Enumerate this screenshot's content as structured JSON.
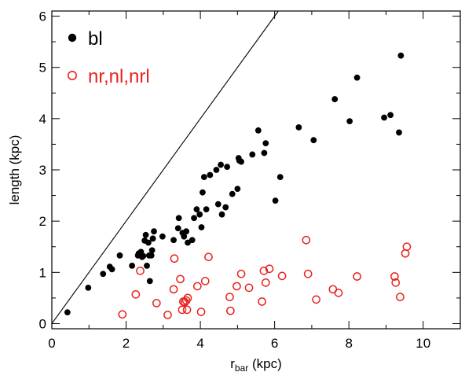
{
  "chart_data": {
    "type": "scatter",
    "xlabel_main": "r",
    "xlabel_sub": "bar",
    "xlabel_unit": " (kpc)",
    "ylabel": "length (kpc)",
    "xlim": [
      0,
      11
    ],
    "ylim": [
      -0.1,
      6.1
    ],
    "xticks": [
      "0",
      "2",
      "4",
      "6",
      "8",
      "10"
    ],
    "yticks": [
      "0",
      "1",
      "2",
      "3",
      "4",
      "5",
      "6"
    ],
    "reference_line": "y = x",
    "legend_position": "top-left",
    "series": [
      {
        "name": "bl",
        "marker": "filled-circle",
        "color": "#000000",
        "points": [
          [
            0.42,
            0.22
          ],
          [
            0.98,
            0.7
          ],
          [
            1.38,
            0.97
          ],
          [
            1.56,
            1.11
          ],
          [
            1.62,
            1.06
          ],
          [
            1.83,
            1.33
          ],
          [
            2.16,
            1.13
          ],
          [
            2.32,
            1.33
          ],
          [
            2.34,
            1.37
          ],
          [
            2.4,
            1.4
          ],
          [
            2.43,
            1.3
          ],
          [
            2.46,
            1.32
          ],
          [
            2.5,
            1.62
          ],
          [
            2.53,
            1.73
          ],
          [
            2.56,
            1.13
          ],
          [
            2.6,
            1.58
          ],
          [
            2.62,
            1.33
          ],
          [
            2.64,
            0.83
          ],
          [
            2.68,
            1.33
          ],
          [
            2.7,
            1.43
          ],
          [
            2.72,
            1.66
          ],
          [
            2.75,
            1.8
          ],
          [
            2.98,
            1.7
          ],
          [
            3.28,
            1.63
          ],
          [
            3.4,
            1.86
          ],
          [
            3.42,
            2.06
          ],
          [
            3.52,
            1.77
          ],
          [
            3.56,
            1.7
          ],
          [
            3.62,
            1.8
          ],
          [
            3.66,
            1.58
          ],
          [
            3.78,
            1.63
          ],
          [
            3.83,
            2.06
          ],
          [
            3.9,
            2.23
          ],
          [
            3.98,
            2.13
          ],
          [
            4.03,
            1.88
          ],
          [
            4.06,
            2.56
          ],
          [
            4.1,
            2.86
          ],
          [
            4.16,
            2.23
          ],
          [
            4.26,
            2.9
          ],
          [
            4.43,
            3.0
          ],
          [
            4.48,
            2.33
          ],
          [
            4.55,
            3.1
          ],
          [
            4.58,
            2.13
          ],
          [
            4.68,
            2.27
          ],
          [
            4.72,
            3.06
          ],
          [
            4.86,
            2.53
          ],
          [
            5.0,
            2.63
          ],
          [
            5.03,
            3.23
          ],
          [
            5.05,
            3.18
          ],
          [
            5.1,
            3.16
          ],
          [
            5.4,
            3.3
          ],
          [
            5.56,
            3.77
          ],
          [
            5.72,
            3.33
          ],
          [
            5.76,
            3.52
          ],
          [
            6.02,
            2.4
          ],
          [
            6.15,
            2.86
          ],
          [
            6.65,
            3.83
          ],
          [
            7.05,
            3.58
          ],
          [
            7.62,
            4.38
          ],
          [
            8.02,
            3.95
          ],
          [
            8.22,
            4.8
          ],
          [
            8.95,
            4.02
          ],
          [
            9.12,
            4.07
          ],
          [
            9.35,
            3.73
          ],
          [
            9.4,
            5.23
          ]
        ]
      },
      {
        "name": "nr,nl,nrl",
        "marker": "open-circle",
        "color": "#e8231f",
        "points": [
          [
            1.9,
            0.18
          ],
          [
            2.26,
            0.57
          ],
          [
            2.38,
            1.03
          ],
          [
            2.82,
            0.4
          ],
          [
            3.12,
            0.17
          ],
          [
            3.28,
            0.67
          ],
          [
            3.3,
            1.27
          ],
          [
            3.46,
            0.87
          ],
          [
            3.51,
            0.27
          ],
          [
            3.54,
            0.43
          ],
          [
            3.58,
            0.42
          ],
          [
            3.62,
            0.45
          ],
          [
            3.64,
            0.27
          ],
          [
            3.66,
            0.5
          ],
          [
            3.92,
            0.73
          ],
          [
            4.02,
            0.23
          ],
          [
            4.13,
            0.83
          ],
          [
            4.22,
            1.3
          ],
          [
            4.79,
            0.52
          ],
          [
            4.81,
            0.25
          ],
          [
            4.98,
            0.73
          ],
          [
            5.1,
            0.97
          ],
          [
            5.31,
            0.7
          ],
          [
            5.66,
            0.43
          ],
          [
            5.71,
            1.03
          ],
          [
            5.76,
            0.8
          ],
          [
            5.86,
            1.07
          ],
          [
            6.2,
            0.93
          ],
          [
            6.85,
            1.63
          ],
          [
            6.9,
            0.97
          ],
          [
            7.12,
            0.47
          ],
          [
            7.57,
            0.67
          ],
          [
            7.72,
            0.6
          ],
          [
            8.22,
            0.92
          ],
          [
            9.23,
            0.92
          ],
          [
            9.26,
            0.8
          ],
          [
            9.38,
            0.52
          ],
          [
            9.52,
            1.37
          ],
          [
            9.56,
            1.5
          ]
        ]
      }
    ]
  }
}
